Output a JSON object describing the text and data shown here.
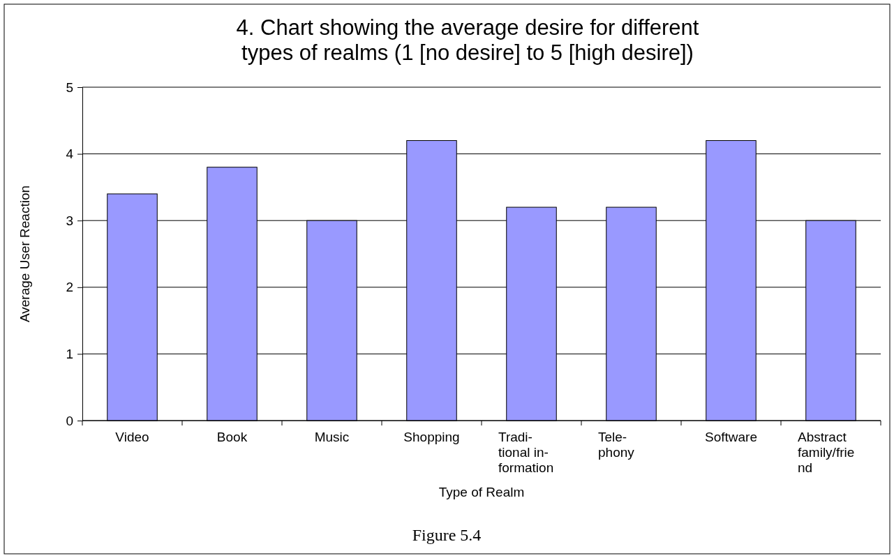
{
  "chart_data": {
    "type": "bar",
    "title": "4. Chart showing the average desire for different\ntypes of realms (1 [no desire] to 5 [high desire])",
    "xlabel": "Type of Realm",
    "ylabel": "Average User Reaction",
    "categories": [
      "Video",
      "Book",
      "Music",
      "Shopping",
      "Tradi-\ntional in-\nformation",
      "Tele-\nphony",
      "Software",
      "Abstract\nfamily/frie\nnd"
    ],
    "values": [
      3.4,
      3.8,
      3.0,
      4.2,
      3.2,
      3.2,
      4.2,
      3.0
    ],
    "color": "#9999ff",
    "ylim": [
      0,
      5
    ],
    "yticks": [
      0,
      1,
      2,
      3,
      4,
      5
    ],
    "grid": "y",
    "annotations": [
      "Figure 5.4"
    ]
  }
}
